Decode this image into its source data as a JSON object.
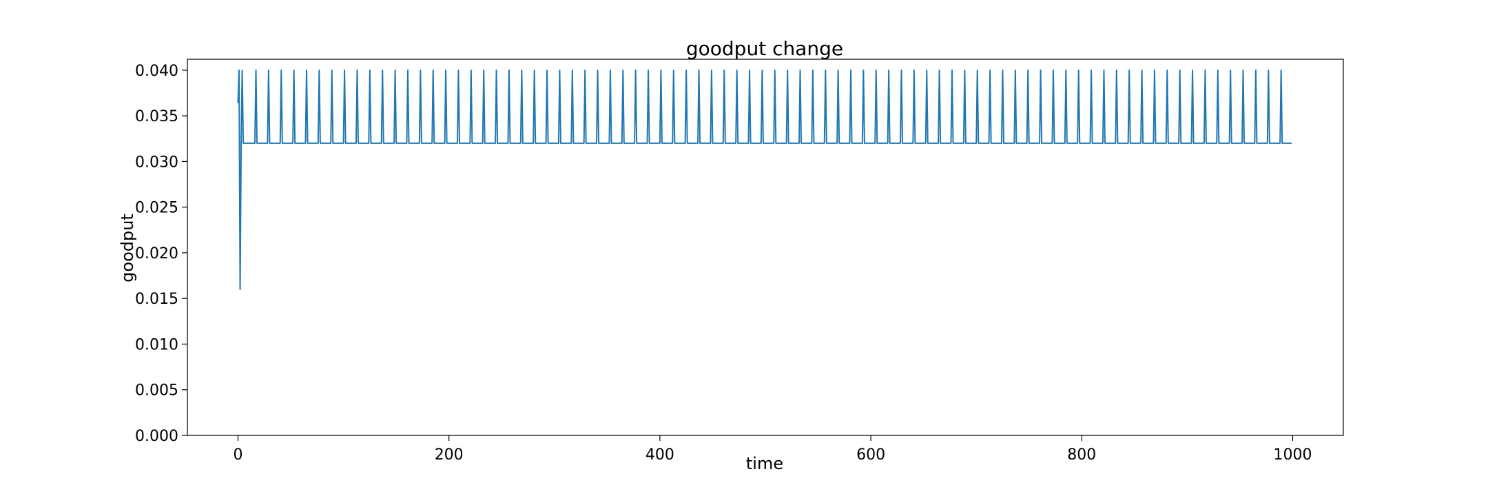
{
  "chart_data": {
    "type": "line",
    "title": "goodput change",
    "xlabel": "time",
    "ylabel": "goodput",
    "xlim": [
      -48,
      1048
    ],
    "ylim": [
      0.0,
      0.0412
    ],
    "xticks": [
      0,
      200,
      400,
      600,
      800,
      1000
    ],
    "xtick_labels": [
      "0",
      "200",
      "400",
      "600",
      "800",
      "1000"
    ],
    "yticks": [
      0.0,
      0.005,
      0.01,
      0.015,
      0.02,
      0.025,
      0.03,
      0.035,
      0.04
    ],
    "ytick_labels": [
      "0.000",
      "0.005",
      "0.010",
      "0.015",
      "0.020",
      "0.025",
      "0.030",
      "0.035",
      "0.040"
    ],
    "grid": false,
    "legend": "none",
    "series": [
      {
        "color": "#1f77b4",
        "pattern": {
          "initial_points": [
            {
              "x": 0,
              "y": 0.0364
            },
            {
              "x": 1,
              "y": 0.04
            },
            {
              "x": 2,
              "y": 0.016
            },
            {
              "x": 3,
              "y": 0.032
            },
            {
              "x": 4,
              "y": 0.04
            },
            {
              "x": 5,
              "y": 0.032
            }
          ],
          "baseline": 0.032,
          "peak": 0.04,
          "peak_start": 17,
          "peak_period": 12,
          "peak_end": 990,
          "x_end": 999
        }
      }
    ]
  }
}
